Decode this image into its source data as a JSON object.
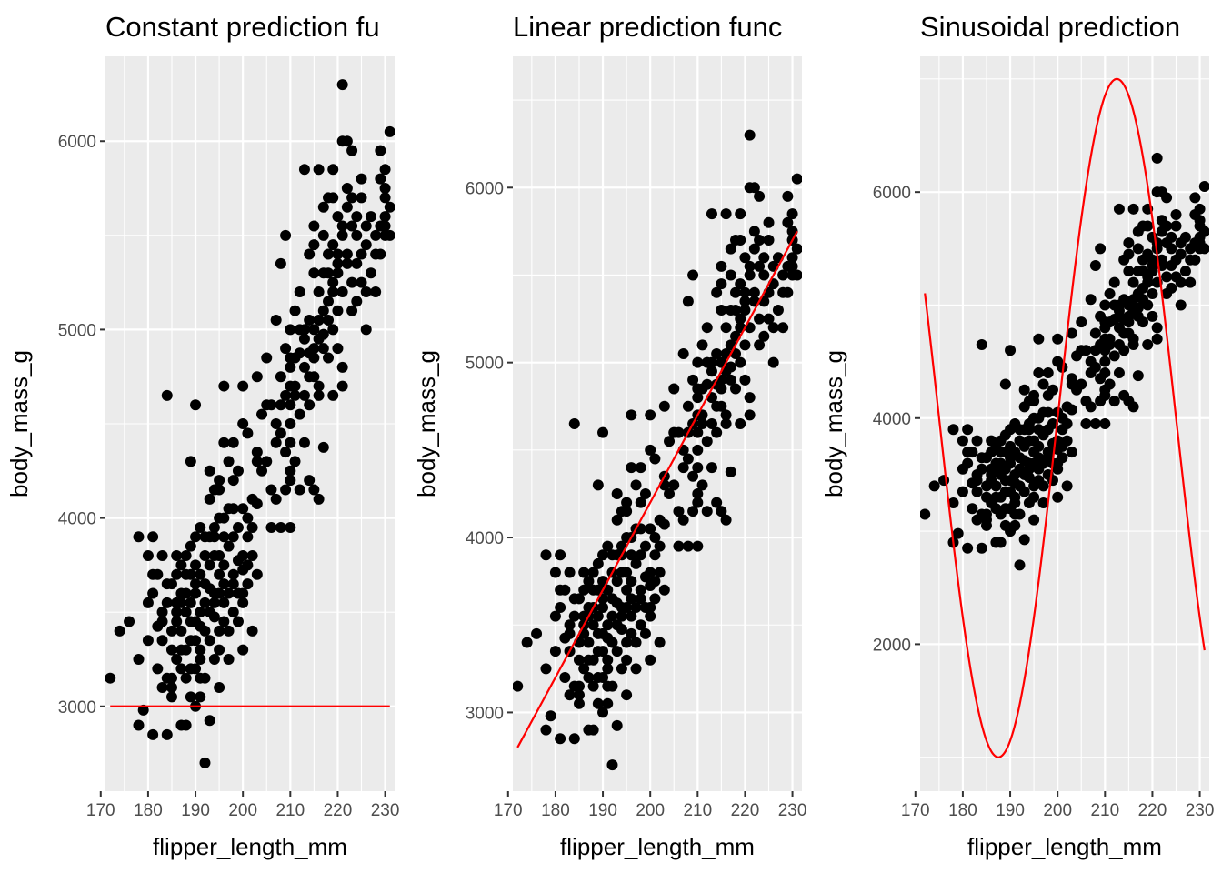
{
  "colors": {
    "panel_background": "#ebebeb",
    "grid": "#ffffff",
    "points": "#000000",
    "prediction_line": "#ff0000",
    "tick_label": "#4d4d4d"
  },
  "chart_data": [
    {
      "type": "scatter",
      "title": "Constant prediction fu",
      "xlabel": "flipper_length_mm",
      "ylabel": "body_mass_g",
      "xlim": [
        171,
        232
      ],
      "ylim": [
        2550,
        6450
      ],
      "x_ticks": [
        170,
        180,
        190,
        200,
        210,
        220,
        230
      ],
      "x_tick_labels": [
        "170",
        "180",
        "190",
        "200",
        "210",
        "220",
        "230"
      ],
      "y_ticks": [
        3000,
        4000,
        5000,
        6000
      ],
      "y_tick_labels": [
        "3000",
        "4000",
        "5000",
        "6000"
      ],
      "grid": true,
      "prediction": {
        "kind": "constant",
        "value": 3000,
        "x_range": [
          172,
          231
        ]
      }
    },
    {
      "type": "scatter",
      "title": "Linear prediction func",
      "xlabel": "flipper_length_mm",
      "ylabel": "body_mass_g",
      "xlim": [
        171,
        232
      ],
      "ylim": [
        2550,
        6750
      ],
      "x_ticks": [
        170,
        180,
        190,
        200,
        210,
        220,
        230
      ],
      "x_tick_labels": [
        "170",
        "180",
        "190",
        "200",
        "210",
        "220",
        "230"
      ],
      "y_ticks": [
        3000,
        4000,
        5000,
        6000
      ],
      "y_tick_labels": [
        "3000",
        "4000",
        "5000",
        "6000"
      ],
      "grid": true,
      "prediction": {
        "kind": "linear",
        "intercept": -5800,
        "slope": 50,
        "x_range": [
          172,
          231
        ]
      }
    },
    {
      "type": "scatter",
      "title": "Sinusoidal prediction",
      "xlabel": "flipper_length_mm",
      "ylabel": "body_mass_g",
      "xlim": [
        171,
        232
      ],
      "ylim": [
        700,
        7200
      ],
      "x_ticks": [
        170,
        180,
        190,
        200,
        210,
        220,
        230
      ],
      "x_tick_labels": [
        "170",
        "180",
        "190",
        "200",
        "210",
        "220",
        "230"
      ],
      "y_ticks": [
        2000,
        4000,
        6000
      ],
      "y_tick_labels": [
        "2000",
        "4000",
        "6000"
      ],
      "grid": true,
      "prediction": {
        "kind": "sinusoidal",
        "offset": 4000,
        "amplitude": 3000,
        "period": 50,
        "phase_x": 200,
        "x_range": [
          172,
          231
        ]
      }
    }
  ],
  "points": [
    [
      172,
      3150
    ],
    [
      174,
      3400
    ],
    [
      176,
      3450
    ],
    [
      178,
      3900
    ],
    [
      178,
      3250
    ],
    [
      178,
      2900
    ],
    [
      179,
      2980
    ],
    [
      180,
      3550
    ],
    [
      180,
      3800
    ],
    [
      181,
      3600
    ],
    [
      181,
      3900
    ],
    [
      181,
      2850
    ],
    [
      182,
      3700
    ],
    [
      182,
      3200
    ],
    [
      183,
      3100
    ],
    [
      183,
      3450
    ],
    [
      183,
      3500
    ],
    [
      184,
      3550
    ],
    [
      184,
      4650
    ],
    [
      184,
      2850
    ],
    [
      185,
      3300
    ],
    [
      185,
      3150
    ],
    [
      185,
      3650
    ],
    [
      185,
      3100
    ],
    [
      186,
      3500
    ],
    [
      186,
      3800
    ],
    [
      186,
      3450
    ],
    [
      187,
      3400
    ],
    [
      187,
      2900
    ],
    [
      187,
      3600
    ],
    [
      187,
      3300
    ],
    [
      188,
      3300
    ],
    [
      188,
      3700
    ],
    [
      188,
      3800
    ],
    [
      188,
      3150
    ],
    [
      188,
      2900
    ],
    [
      189,
      3550
    ],
    [
      189,
      3350
    ],
    [
      189,
      3850
    ],
    [
      189,
      3050
    ],
    [
      189,
      4300
    ],
    [
      190,
      3600
    ],
    [
      190,
      3450
    ],
    [
      190,
      3900
    ],
    [
      190,
      3200
    ],
    [
      190,
      3750
    ],
    [
      190,
      4600
    ],
    [
      191,
      3700
    ],
    [
      191,
      3250
    ],
    [
      191,
      3500
    ],
    [
      191,
      3050
    ],
    [
      191,
      3950
    ],
    [
      192,
      3650
    ],
    [
      192,
      3800
    ],
    [
      192,
      3150
    ],
    [
      192,
      2700
    ],
    [
      192,
      3400
    ],
    [
      193,
      3350
    ],
    [
      193,
      3750
    ],
    [
      193,
      4250
    ],
    [
      193,
      3500
    ],
    [
      193,
      2925
    ],
    [
      194,
      3550
    ],
    [
      194,
      4150
    ],
    [
      194,
      3900
    ],
    [
      194,
      3250
    ],
    [
      194,
      3475
    ],
    [
      195,
      3700
    ],
    [
      195,
      4200
    ],
    [
      195,
      3600
    ],
    [
      195,
      3400
    ],
    [
      195,
      4000
    ],
    [
      195,
      3800
    ],
    [
      196,
      3550
    ],
    [
      196,
      4400
    ],
    [
      196,
      3450
    ],
    [
      196,
      4700
    ],
    [
      196,
      3750
    ],
    [
      197,
      3400
    ],
    [
      197,
      4050
    ],
    [
      197,
      3850
    ],
    [
      197,
      4300
    ],
    [
      197,
      3600
    ],
    [
      198,
      3500
    ],
    [
      198,
      4200
    ],
    [
      198,
      3900
    ],
    [
      198,
      3700
    ],
    [
      198,
      4400
    ],
    [
      199,
      3775
    ],
    [
      199,
      3600
    ],
    [
      199,
      4250
    ],
    [
      199,
      3950
    ],
    [
      200,
      3800
    ],
    [
      200,
      3300
    ],
    [
      200,
      4050
    ],
    [
      200,
      3550
    ],
    [
      200,
      4500
    ],
    [
      200,
      3725
    ],
    [
      201,
      4000
    ],
    [
      201,
      3750
    ],
    [
      201,
      4450
    ],
    [
      201,
      3900
    ],
    [
      202,
      3400
    ],
    [
      202,
      4100
    ],
    [
      202,
      3950
    ],
    [
      203,
      4075
    ],
    [
      203,
      3700
    ],
    [
      203,
      4750
    ],
    [
      204,
      4550
    ],
    [
      205,
      4300
    ],
    [
      205,
      4850
    ],
    [
      206,
      3950
    ],
    [
      207,
      4100
    ],
    [
      207,
      5050
    ],
    [
      207,
      4400
    ],
    [
      208,
      4600
    ],
    [
      208,
      3950
    ],
    [
      208,
      5350
    ],
    [
      208,
      4750
    ],
    [
      209,
      4150
    ],
    [
      209,
      4350
    ],
    [
      209,
      4650
    ],
    [
      209,
      5500
    ],
    [
      210,
      4800
    ],
    [
      210,
      4500
    ],
    [
      210,
      4200
    ],
    [
      210,
      5000
    ],
    [
      210,
      3950
    ],
    [
      210,
      4400
    ],
    [
      210,
      4700
    ],
    [
      211,
      4850
    ],
    [
      211,
      4700
    ],
    [
      211,
      4300
    ],
    [
      212,
      4550
    ],
    [
      212,
      4875
    ],
    [
      212,
      5200
    ],
    [
      213,
      4650
    ],
    [
      213,
      4950
    ],
    [
      213,
      4400
    ],
    [
      213,
      5850
    ],
    [
      214,
      5050
    ],
    [
      214,
      4875
    ],
    [
      214,
      5400
    ],
    [
      214,
      4750
    ],
    [
      215,
      5000
    ],
    [
      215,
      5550
    ],
    [
      215,
      4850
    ],
    [
      215,
      5300
    ],
    [
      215,
      4900
    ],
    [
      216,
      5200
    ],
    [
      216,
      4700
    ],
    [
      216,
      4950
    ],
    [
      216,
      5850
    ],
    [
      216,
      4100
    ],
    [
      217,
      5100
    ],
    [
      217,
      4975
    ],
    [
      217,
      5650
    ],
    [
      217,
      4375
    ],
    [
      218,
      5300
    ],
    [
      218,
      4850
    ],
    [
      218,
      5400
    ],
    [
      218,
      5050
    ],
    [
      219,
      5000
    ],
    [
      219,
      5250
    ],
    [
      219,
      5700
    ],
    [
      219,
      5450
    ],
    [
      220,
      5100
    ],
    [
      220,
      5400
    ],
    [
      220,
      4900
    ],
    [
      220,
      5300
    ],
    [
      220,
      5600
    ],
    [
      221,
      5550
    ],
    [
      221,
      6000
    ],
    [
      221,
      6300
    ],
    [
      221,
      5200
    ],
    [
      221,
      4700
    ],
    [
      222,
      5400
    ],
    [
      222,
      5650
    ],
    [
      222,
      5750
    ],
    [
      223,
      5550
    ],
    [
      223,
      5950
    ],
    [
      223,
      5100
    ],
    [
      224,
      5350
    ],
    [
      224,
      5600
    ],
    [
      225,
      5400
    ],
    [
      225,
      5250
    ],
    [
      225,
      5800
    ],
    [
      226,
      5000
    ],
    [
      226,
      5450
    ],
    [
      227,
      5600
    ],
    [
      228,
      5500
    ],
    [
      228,
      5400
    ],
    [
      229,
      5800
    ],
    [
      229,
      5950
    ],
    [
      230,
      5600
    ],
    [
      230,
      5550
    ],
    [
      230,
      5850
    ],
    [
      230,
      5700
    ],
    [
      230,
      5750
    ],
    [
      230,
      5500
    ],
    [
      231,
      5650
    ],
    [
      231,
      6050
    ],
    [
      229,
      5550
    ],
    [
      224,
      5500
    ],
    [
      219,
      5200
    ],
    [
      211,
      4650
    ],
    [
      206,
      4600
    ],
    [
      204,
      4250
    ],
    [
      194,
      3600
    ],
    [
      190,
      3650
    ],
    [
      186,
      3550
    ],
    [
      183,
      3350
    ],
    [
      214,
      4600
    ],
    [
      218,
      5700
    ],
    [
      223,
      5700
    ],
    [
      227,
      5300
    ],
    [
      216,
      5050
    ],
    [
      212,
      5000
    ],
    [
      201,
      3650
    ],
    [
      198,
      3650
    ],
    [
      196,
      3900
    ],
    [
      194,
      3800
    ],
    [
      192,
      3550
    ],
    [
      189,
      3450
    ],
    [
      187,
      3750
    ],
    [
      185,
      3400
    ],
    [
      183,
      3800
    ],
    [
      180,
      3350
    ],
    [
      222,
      5350
    ],
    [
      215,
      4750
    ],
    [
      210,
      4850
    ],
    [
      208,
      4450
    ],
    [
      203,
      4350
    ],
    [
      199,
      3450
    ],
    [
      197,
      3250
    ],
    [
      195,
      3300
    ],
    [
      193,
      3625
    ],
    [
      191,
      3425
    ],
    [
      189,
      3200
    ],
    [
      187,
      3200
    ],
    [
      185,
      3050
    ],
    [
      184,
      3150
    ],
    [
      182,
      3425
    ],
    [
      196,
      4000
    ],
    [
      193,
      3900
    ],
    [
      191,
      3300
    ],
    [
      188,
      3500
    ],
    [
      186,
      3700
    ],
    [
      195,
      3100
    ],
    [
      190,
      3000
    ],
    [
      200,
      3600
    ],
    [
      202,
      3800
    ],
    [
      198,
      4050
    ],
    [
      195,
      4150
    ],
    [
      193,
      4100
    ],
    [
      191,
      3150
    ],
    [
      189,
      3700
    ],
    [
      187,
      3550
    ],
    [
      184,
      3650
    ],
    [
      181,
      3700
    ],
    [
      213,
      4800
    ],
    [
      215,
      4150
    ],
    [
      217,
      4900
    ],
    [
      219,
      4650
    ],
    [
      221,
      5500
    ],
    [
      224,
      5150
    ],
    [
      226,
      5550
    ],
    [
      228,
      5200
    ],
    [
      220,
      5350
    ],
    [
      218,
      5150
    ],
    [
      216,
      4650
    ],
    [
      214,
      4200
    ],
    [
      212,
      4150
    ],
    [
      210,
      4250
    ],
    [
      209,
      4900
    ],
    [
      207,
      4500
    ],
    [
      205,
      4600
    ],
    [
      211,
      5100
    ],
    [
      213,
      5000
    ],
    [
      217,
      5300
    ],
    [
      219,
      5850
    ],
    [
      222,
      6000
    ],
    [
      225,
      5700
    ],
    [
      229,
      5400
    ],
    [
      231,
      5500
    ],
    [
      226,
      5200
    ],
    [
      223,
      5250
    ],
    [
      221,
      4800
    ],
    [
      217,
      5500
    ],
    [
      215,
      5450
    ],
    [
      210,
      4600
    ],
    [
      206,
      4150
    ],
    [
      203,
      4300
    ],
    [
      200,
      4700
    ],
    [
      196,
      3650
    ],
    [
      194,
      3950
    ],
    [
      192,
      3900
    ],
    [
      190,
      3350
    ],
    [
      188,
      3600
    ],
    [
      186,
      3250
    ]
  ],
  "panels_layout_note": ""
}
